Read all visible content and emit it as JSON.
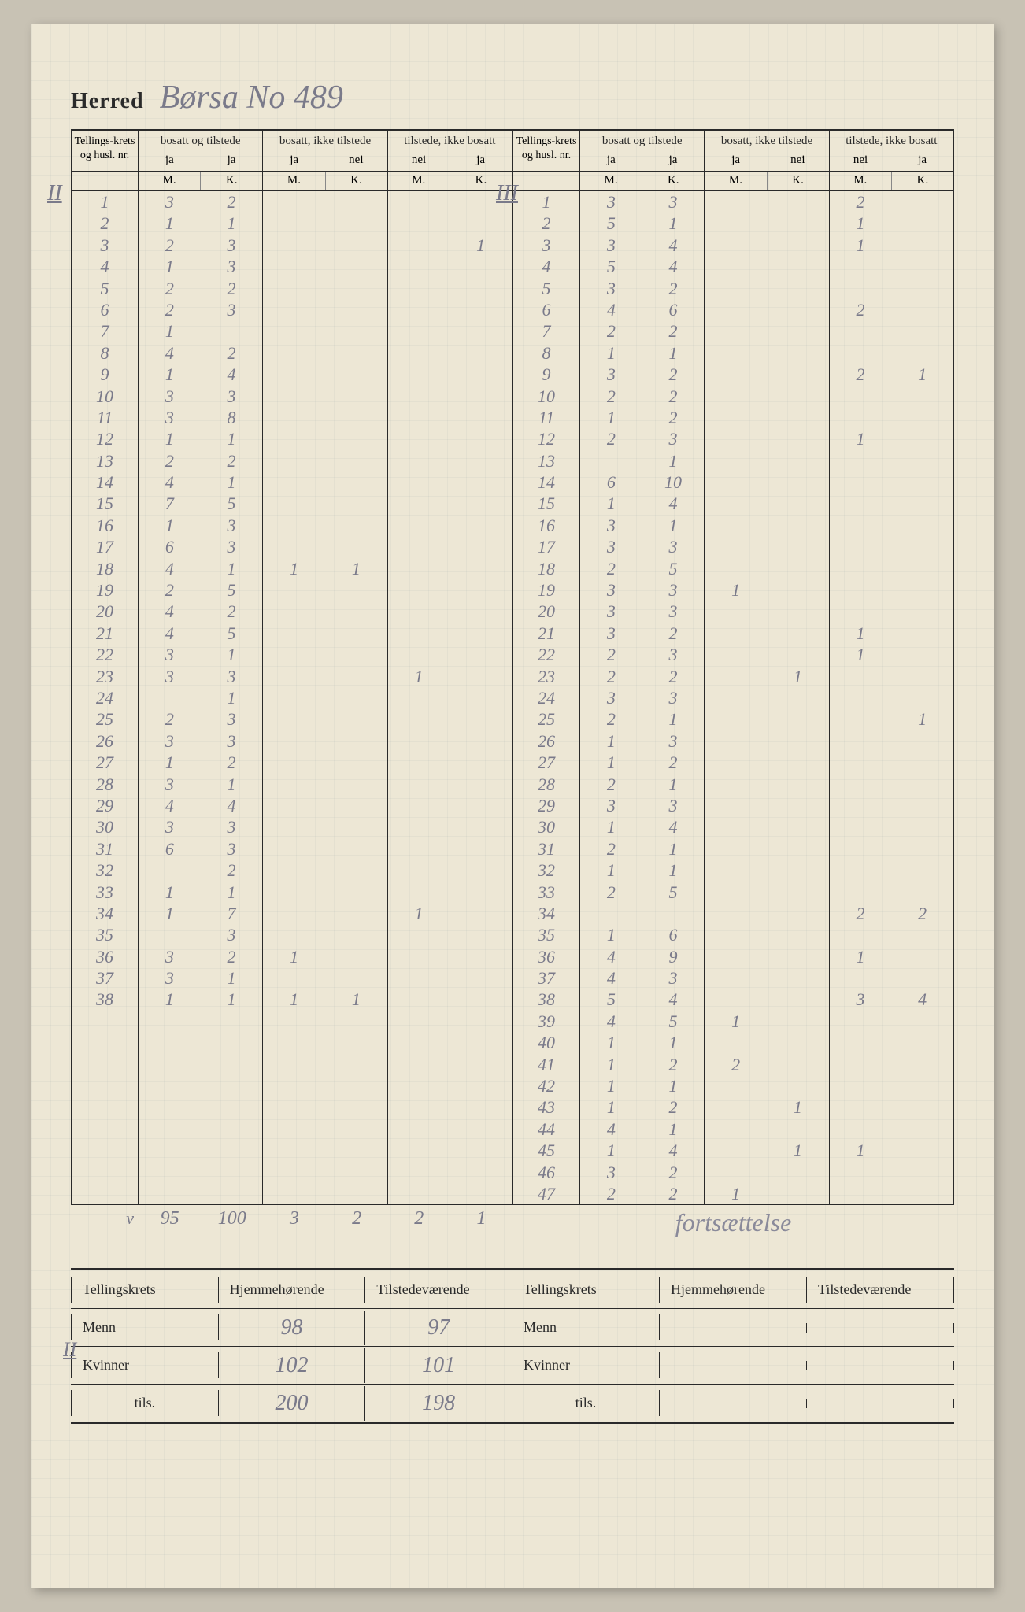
{
  "colors": {
    "paper": "#ede7d5",
    "bg": "#c8c2b4",
    "ink": "#2a2a2a",
    "pencil": "#7a7a8a",
    "grid": "rgba(120,140,150,0.08)"
  },
  "header": {
    "herred_label": "Herred",
    "herred_value": "Børsa No 489"
  },
  "col_headers": {
    "id": "Tellings-krets og husl. nr.",
    "g1": "bosatt og tilstede",
    "g1_sub": [
      "ja",
      "ja"
    ],
    "g2": "bosatt, ikke tilstede",
    "g2_sub": [
      "ja",
      "nei"
    ],
    "g3": "tilstede, ikke bosatt",
    "g3_sub": [
      "nei",
      "ja"
    ],
    "mk": [
      "M.",
      "K.",
      "M.",
      "K.",
      "M.",
      "K."
    ]
  },
  "romans": {
    "left": "II",
    "right": "III",
    "sum_left": "II"
  },
  "left_rows": [
    {
      "n": "1",
      "m1": "3",
      "k1": "2"
    },
    {
      "n": "2",
      "m1": "1",
      "k1": "1"
    },
    {
      "n": "3",
      "m1": "2",
      "k1": "3",
      "k3": "1"
    },
    {
      "n": "4",
      "m1": "1",
      "k1": "3"
    },
    {
      "n": "5",
      "m1": "2",
      "k1": "2"
    },
    {
      "n": "6",
      "m1": "2",
      "k1": "3"
    },
    {
      "n": "7",
      "m1": "1"
    },
    {
      "n": "8",
      "m1": "4",
      "k1": "2"
    },
    {
      "n": "9",
      "m1": "1",
      "k1": "4"
    },
    {
      "n": "10",
      "m1": "3",
      "k1": "3"
    },
    {
      "n": "11",
      "m1": "3",
      "k1": "8"
    },
    {
      "n": "12",
      "m1": "1",
      "k1": "1"
    },
    {
      "n": "13",
      "m1": "2",
      "k1": "2"
    },
    {
      "n": "14",
      "m1": "4",
      "k1": "1"
    },
    {
      "n": "15",
      "m1": "7",
      "k1": "5"
    },
    {
      "n": "16",
      "m1": "1",
      "k1": "3"
    },
    {
      "n": "17",
      "m1": "6",
      "k1": "3"
    },
    {
      "n": "18",
      "m1": "4",
      "k1": "1",
      "m2": "1",
      "k2": "1"
    },
    {
      "n": "19",
      "m1": "2",
      "k1": "5"
    },
    {
      "n": "20",
      "m1": "4",
      "k1": "2"
    },
    {
      "n": "21",
      "m1": "4",
      "k1": "5"
    },
    {
      "n": "22",
      "m1": "3",
      "k1": "1"
    },
    {
      "n": "23",
      "m1": "3",
      "k1": "3",
      "m3": "1"
    },
    {
      "n": "24",
      "k1": "1"
    },
    {
      "n": "25",
      "m1": "2",
      "k1": "3"
    },
    {
      "n": "26",
      "m1": "3",
      "k1": "3"
    },
    {
      "n": "27",
      "m1": "1",
      "k1": "2"
    },
    {
      "n": "28",
      "m1": "3",
      "k1": "1"
    },
    {
      "n": "29",
      "m1": "4",
      "k1": "4"
    },
    {
      "n": "30",
      "m1": "3",
      "k1": "3"
    },
    {
      "n": "31",
      "m1": "6",
      "k1": "3"
    },
    {
      "n": "32",
      "k1": "2"
    },
    {
      "n": "33",
      "m1": "1",
      "k1": "1"
    },
    {
      "n": "34",
      "m1": "1",
      "k1": "7",
      "m3": "1"
    },
    {
      "n": "35",
      "k1": "3"
    },
    {
      "n": "36",
      "m1": "3",
      "k1": "2",
      "m2": "1"
    },
    {
      "n": "37",
      "m1": "3",
      "k1": "1"
    },
    {
      "n": "38",
      "m1": "1",
      "k1": "1",
      "m2": "1",
      "k2": "1"
    }
  ],
  "right_rows": [
    {
      "n": "1",
      "m1": "3",
      "k1": "3",
      "m3": "2"
    },
    {
      "n": "2",
      "m1": "5",
      "k1": "1",
      "m3": "1"
    },
    {
      "n": "3",
      "m1": "3",
      "k1": "4",
      "m3": "1"
    },
    {
      "n": "4",
      "m1": "5",
      "k1": "4"
    },
    {
      "n": "5",
      "m1": "3",
      "k1": "2"
    },
    {
      "n": "6",
      "m1": "4",
      "k1": "6",
      "m3": "2"
    },
    {
      "n": "7",
      "m1": "2",
      "k1": "2"
    },
    {
      "n": "8",
      "m1": "1",
      "k1": "1"
    },
    {
      "n": "9",
      "m1": "3",
      "k1": "2",
      "m3": "2",
      "k3": "1"
    },
    {
      "n": "10",
      "m1": "2",
      "k1": "2"
    },
    {
      "n": "11",
      "m1": "1",
      "k1": "2"
    },
    {
      "n": "12",
      "m1": "2",
      "k1": "3",
      "m3": "1"
    },
    {
      "n": "13",
      "k1": "1"
    },
    {
      "n": "14",
      "m1": "6",
      "k1": "10"
    },
    {
      "n": "15",
      "m1": "1",
      "k1": "4"
    },
    {
      "n": "16",
      "m1": "3",
      "k1": "1"
    },
    {
      "n": "17",
      "m1": "3",
      "k1": "3"
    },
    {
      "n": "18",
      "m1": "2",
      "k1": "5"
    },
    {
      "n": "19",
      "m1": "3",
      "k1": "3",
      "m2": "1"
    },
    {
      "n": "20",
      "m1": "3",
      "k1": "3"
    },
    {
      "n": "21",
      "m1": "3",
      "k1": "2",
      "m3": "1"
    },
    {
      "n": "22",
      "m1": "2",
      "k1": "3",
      "m3": "1"
    },
    {
      "n": "23",
      "m1": "2",
      "k1": "2",
      "k2": "1"
    },
    {
      "n": "24",
      "m1": "3",
      "k1": "3"
    },
    {
      "n": "25",
      "m1": "2",
      "k1": "1",
      "k3": "1"
    },
    {
      "n": "26",
      "m1": "1",
      "k1": "3"
    },
    {
      "n": "27",
      "m1": "1",
      "k1": "2"
    },
    {
      "n": "28",
      "m1": "2",
      "k1": "1"
    },
    {
      "n": "29",
      "m1": "3",
      "k1": "3"
    },
    {
      "n": "30",
      "m1": "1",
      "k1": "4"
    },
    {
      "n": "31",
      "m1": "2",
      "k1": "1"
    },
    {
      "n": "32",
      "m1": "1",
      "k1": "1"
    },
    {
      "n": "33",
      "m1": "2",
      "k1": "5"
    },
    {
      "n": "34",
      "m3": "2",
      "k3": "2"
    },
    {
      "n": "35",
      "m1": "1",
      "k1": "6"
    },
    {
      "n": "36",
      "m1": "4",
      "k1": "9",
      "m3": "1"
    },
    {
      "n": "37",
      "m1": "4",
      "k1": "3"
    },
    {
      "n": "38",
      "m1": "5",
      "k1": "4",
      "m3": "3",
      "k3": "4"
    },
    {
      "n": "39",
      "m1": "4",
      "k1": "5",
      "m2": "1"
    },
    {
      "n": "40",
      "m1": "1",
      "k1": "1"
    },
    {
      "n": "41",
      "m1": "1",
      "k1": "2",
      "m2": "2"
    },
    {
      "n": "42",
      "m1": "1",
      "k1": "1"
    },
    {
      "n": "43",
      "m1": "1",
      "k1": "2",
      "k2": "1"
    },
    {
      "n": "44",
      "m1": "4",
      "k1": "1"
    },
    {
      "n": "45",
      "m1": "1",
      "k1": "4",
      "k2": "1",
      "m3": "1"
    },
    {
      "n": "46",
      "m1": "3",
      "k1": "2"
    },
    {
      "n": "47",
      "m1": "2",
      "k1": "2",
      "m2": "1"
    }
  ],
  "left_totals": {
    "prefix": "v",
    "m1": "95",
    "k1": "100",
    "m2": "3",
    "k2": "2",
    "m3": "2",
    "k3": "1"
  },
  "right_note": "fortsættelse",
  "summary": {
    "headers": [
      "Tellingskrets",
      "Hjemmehørende",
      "Tilstedeværende"
    ],
    "rows_left": [
      {
        "label": "Menn",
        "h": "98",
        "t": "97"
      },
      {
        "label": "Kvinner",
        "h": "102",
        "t": "101"
      },
      {
        "label": "tils.",
        "h": "200",
        "t": "198"
      }
    ],
    "rows_right": [
      {
        "label": "Menn",
        "h": "",
        "t": ""
      },
      {
        "label": "Kvinner",
        "h": "",
        "t": ""
      },
      {
        "label": "tils.",
        "h": "",
        "t": ""
      }
    ]
  }
}
